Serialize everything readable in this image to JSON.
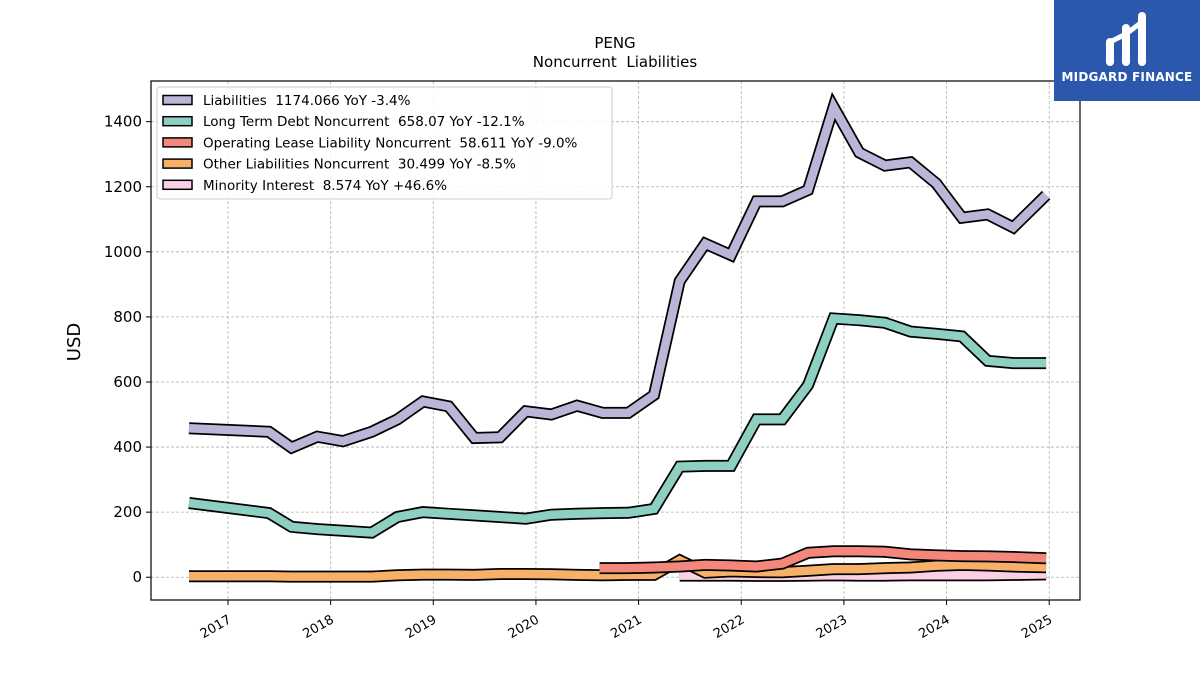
{
  "logo": {
    "text": "MIDGARD FINANCE"
  },
  "chart_data": {
    "type": "line",
    "title": "PENG",
    "subtitle": "Noncurrent  Liabilities",
    "ylabel": "USD",
    "xlabel": "",
    "ylim": [
      -70,
      1525
    ],
    "xlim": [
      2016.25,
      2025.3
    ],
    "yticks": [
      0,
      200,
      400,
      600,
      800,
      1000,
      1200,
      1400
    ],
    "xticks": [
      2017,
      2018,
      2019,
      2020,
      2021,
      2022,
      2023,
      2024,
      2025
    ],
    "grid": true,
    "legend_position": "top-left",
    "series": [
      {
        "name": "Liabilities",
        "legend": "Liabilities  1174.066 YoY -3.4%",
        "color": "#bcb5d8",
        "points": [
          [
            2016.62,
            458
          ],
          [
            2017.4,
            447
          ],
          [
            2017.62,
            398
          ],
          [
            2017.87,
            432
          ],
          [
            2018.12,
            418
          ],
          [
            2018.4,
            447
          ],
          [
            2018.65,
            485
          ],
          [
            2018.9,
            540
          ],
          [
            2019.15,
            525
          ],
          [
            2019.4,
            428
          ],
          [
            2019.65,
            430
          ],
          [
            2019.9,
            510
          ],
          [
            2020.15,
            500
          ],
          [
            2020.4,
            527
          ],
          [
            2020.65,
            505
          ],
          [
            2020.9,
            505
          ],
          [
            2021.15,
            560
          ],
          [
            2021.4,
            910
          ],
          [
            2021.65,
            1025
          ],
          [
            2021.9,
            990
          ],
          [
            2022.15,
            1155
          ],
          [
            2022.4,
            1155
          ],
          [
            2022.65,
            1190
          ],
          [
            2022.9,
            1445
          ],
          [
            2023.15,
            1305
          ],
          [
            2023.4,
            1265
          ],
          [
            2023.65,
            1275
          ],
          [
            2023.9,
            1210
          ],
          [
            2024.15,
            1105
          ],
          [
            2024.4,
            1115
          ],
          [
            2024.65,
            1075
          ],
          [
            2024.97,
            1174.066
          ]
        ]
      },
      {
        "name": "Long Term Debt Noncurrent",
        "legend": "Long Term Debt Noncurrent  658.07 YoY -12.1%",
        "color": "#8dcfc0",
        "points": [
          [
            2016.62,
            228
          ],
          [
            2017.4,
            197
          ],
          [
            2017.62,
            155
          ],
          [
            2017.87,
            148
          ],
          [
            2018.12,
            143
          ],
          [
            2018.4,
            137
          ],
          [
            2018.65,
            185
          ],
          [
            2018.9,
            200
          ],
          [
            2019.15,
            195
          ],
          [
            2019.4,
            190
          ],
          [
            2019.65,
            185
          ],
          [
            2019.9,
            180
          ],
          [
            2020.15,
            192
          ],
          [
            2020.4,
            195
          ],
          [
            2020.65,
            197
          ],
          [
            2020.9,
            198
          ],
          [
            2021.15,
            210
          ],
          [
            2021.4,
            340
          ],
          [
            2021.65,
            342
          ],
          [
            2021.9,
            342
          ],
          [
            2022.15,
            485
          ],
          [
            2022.4,
            485
          ],
          [
            2022.65,
            590
          ],
          [
            2022.9,
            795
          ],
          [
            2023.15,
            790
          ],
          [
            2023.4,
            782
          ],
          [
            2023.65,
            755
          ],
          [
            2023.9,
            748
          ],
          [
            2024.15,
            740
          ],
          [
            2024.4,
            665
          ],
          [
            2024.65,
            658
          ],
          [
            2024.97,
            658.07
          ]
        ]
      },
      {
        "name": "Operating Lease Liability Noncurrent",
        "legend": "Operating Lease Liability Noncurrent  58.611 YoY -9.0%",
        "color": "#f4877b",
        "points": [
          [
            2020.62,
            28
          ],
          [
            2020.9,
            28
          ],
          [
            2021.15,
            30
          ],
          [
            2021.4,
            33
          ],
          [
            2021.65,
            38
          ],
          [
            2021.9,
            36
          ],
          [
            2022.15,
            33
          ],
          [
            2022.4,
            42
          ],
          [
            2022.65,
            75
          ],
          [
            2022.9,
            80
          ],
          [
            2023.15,
            80
          ],
          [
            2023.4,
            78
          ],
          [
            2023.65,
            70
          ],
          [
            2023.9,
            67
          ],
          [
            2024.15,
            65
          ],
          [
            2024.4,
            64
          ],
          [
            2024.65,
            62
          ],
          [
            2024.97,
            58.611
          ]
        ]
      },
      {
        "name": "Other Liabilities Noncurrent",
        "legend": "Other Liabilities Noncurrent  30.499 YoY -8.5%",
        "color": "#f7b067",
        "points": [
          [
            2016.62,
            3
          ],
          [
            2017.4,
            3
          ],
          [
            2017.62,
            2
          ],
          [
            2017.87,
            2
          ],
          [
            2018.12,
            2
          ],
          [
            2018.4,
            2
          ],
          [
            2018.65,
            6
          ],
          [
            2018.9,
            8
          ],
          [
            2019.15,
            8
          ],
          [
            2019.4,
            7
          ],
          [
            2019.65,
            10
          ],
          [
            2019.9,
            10
          ],
          [
            2020.15,
            9
          ],
          [
            2020.4,
            7
          ],
          [
            2020.65,
            6
          ],
          [
            2020.9,
            7
          ],
          [
            2021.15,
            7
          ],
          [
            2021.4,
            52
          ],
          [
            2021.65,
            14
          ],
          [
            2021.9,
            18
          ],
          [
            2022.15,
            16
          ],
          [
            2022.4,
            15
          ],
          [
            2022.65,
            20
          ],
          [
            2022.9,
            25
          ],
          [
            2023.15,
            25
          ],
          [
            2023.4,
            28
          ],
          [
            2023.65,
            30
          ],
          [
            2023.9,
            35
          ],
          [
            2024.15,
            38
          ],
          [
            2024.4,
            36
          ],
          [
            2024.65,
            33
          ],
          [
            2024.97,
            30.499
          ]
        ]
      },
      {
        "name": "Minority Interest",
        "legend": "Minority Interest  8.574 YoY +46.6%",
        "color": "#fbd0e6",
        "points": [
          [
            2021.4,
            5
          ],
          [
            2021.65,
            5
          ],
          [
            2021.9,
            5
          ],
          [
            2022.15,
            4
          ],
          [
            2022.4,
            4
          ],
          [
            2022.65,
            5
          ],
          [
            2022.9,
            6
          ],
          [
            2023.15,
            5
          ],
          [
            2023.4,
            5
          ],
          [
            2023.65,
            6
          ],
          [
            2023.9,
            6
          ],
          [
            2024.15,
            6
          ],
          [
            2024.4,
            6
          ],
          [
            2024.65,
            7
          ],
          [
            2024.97,
            8.574
          ]
        ]
      }
    ]
  }
}
